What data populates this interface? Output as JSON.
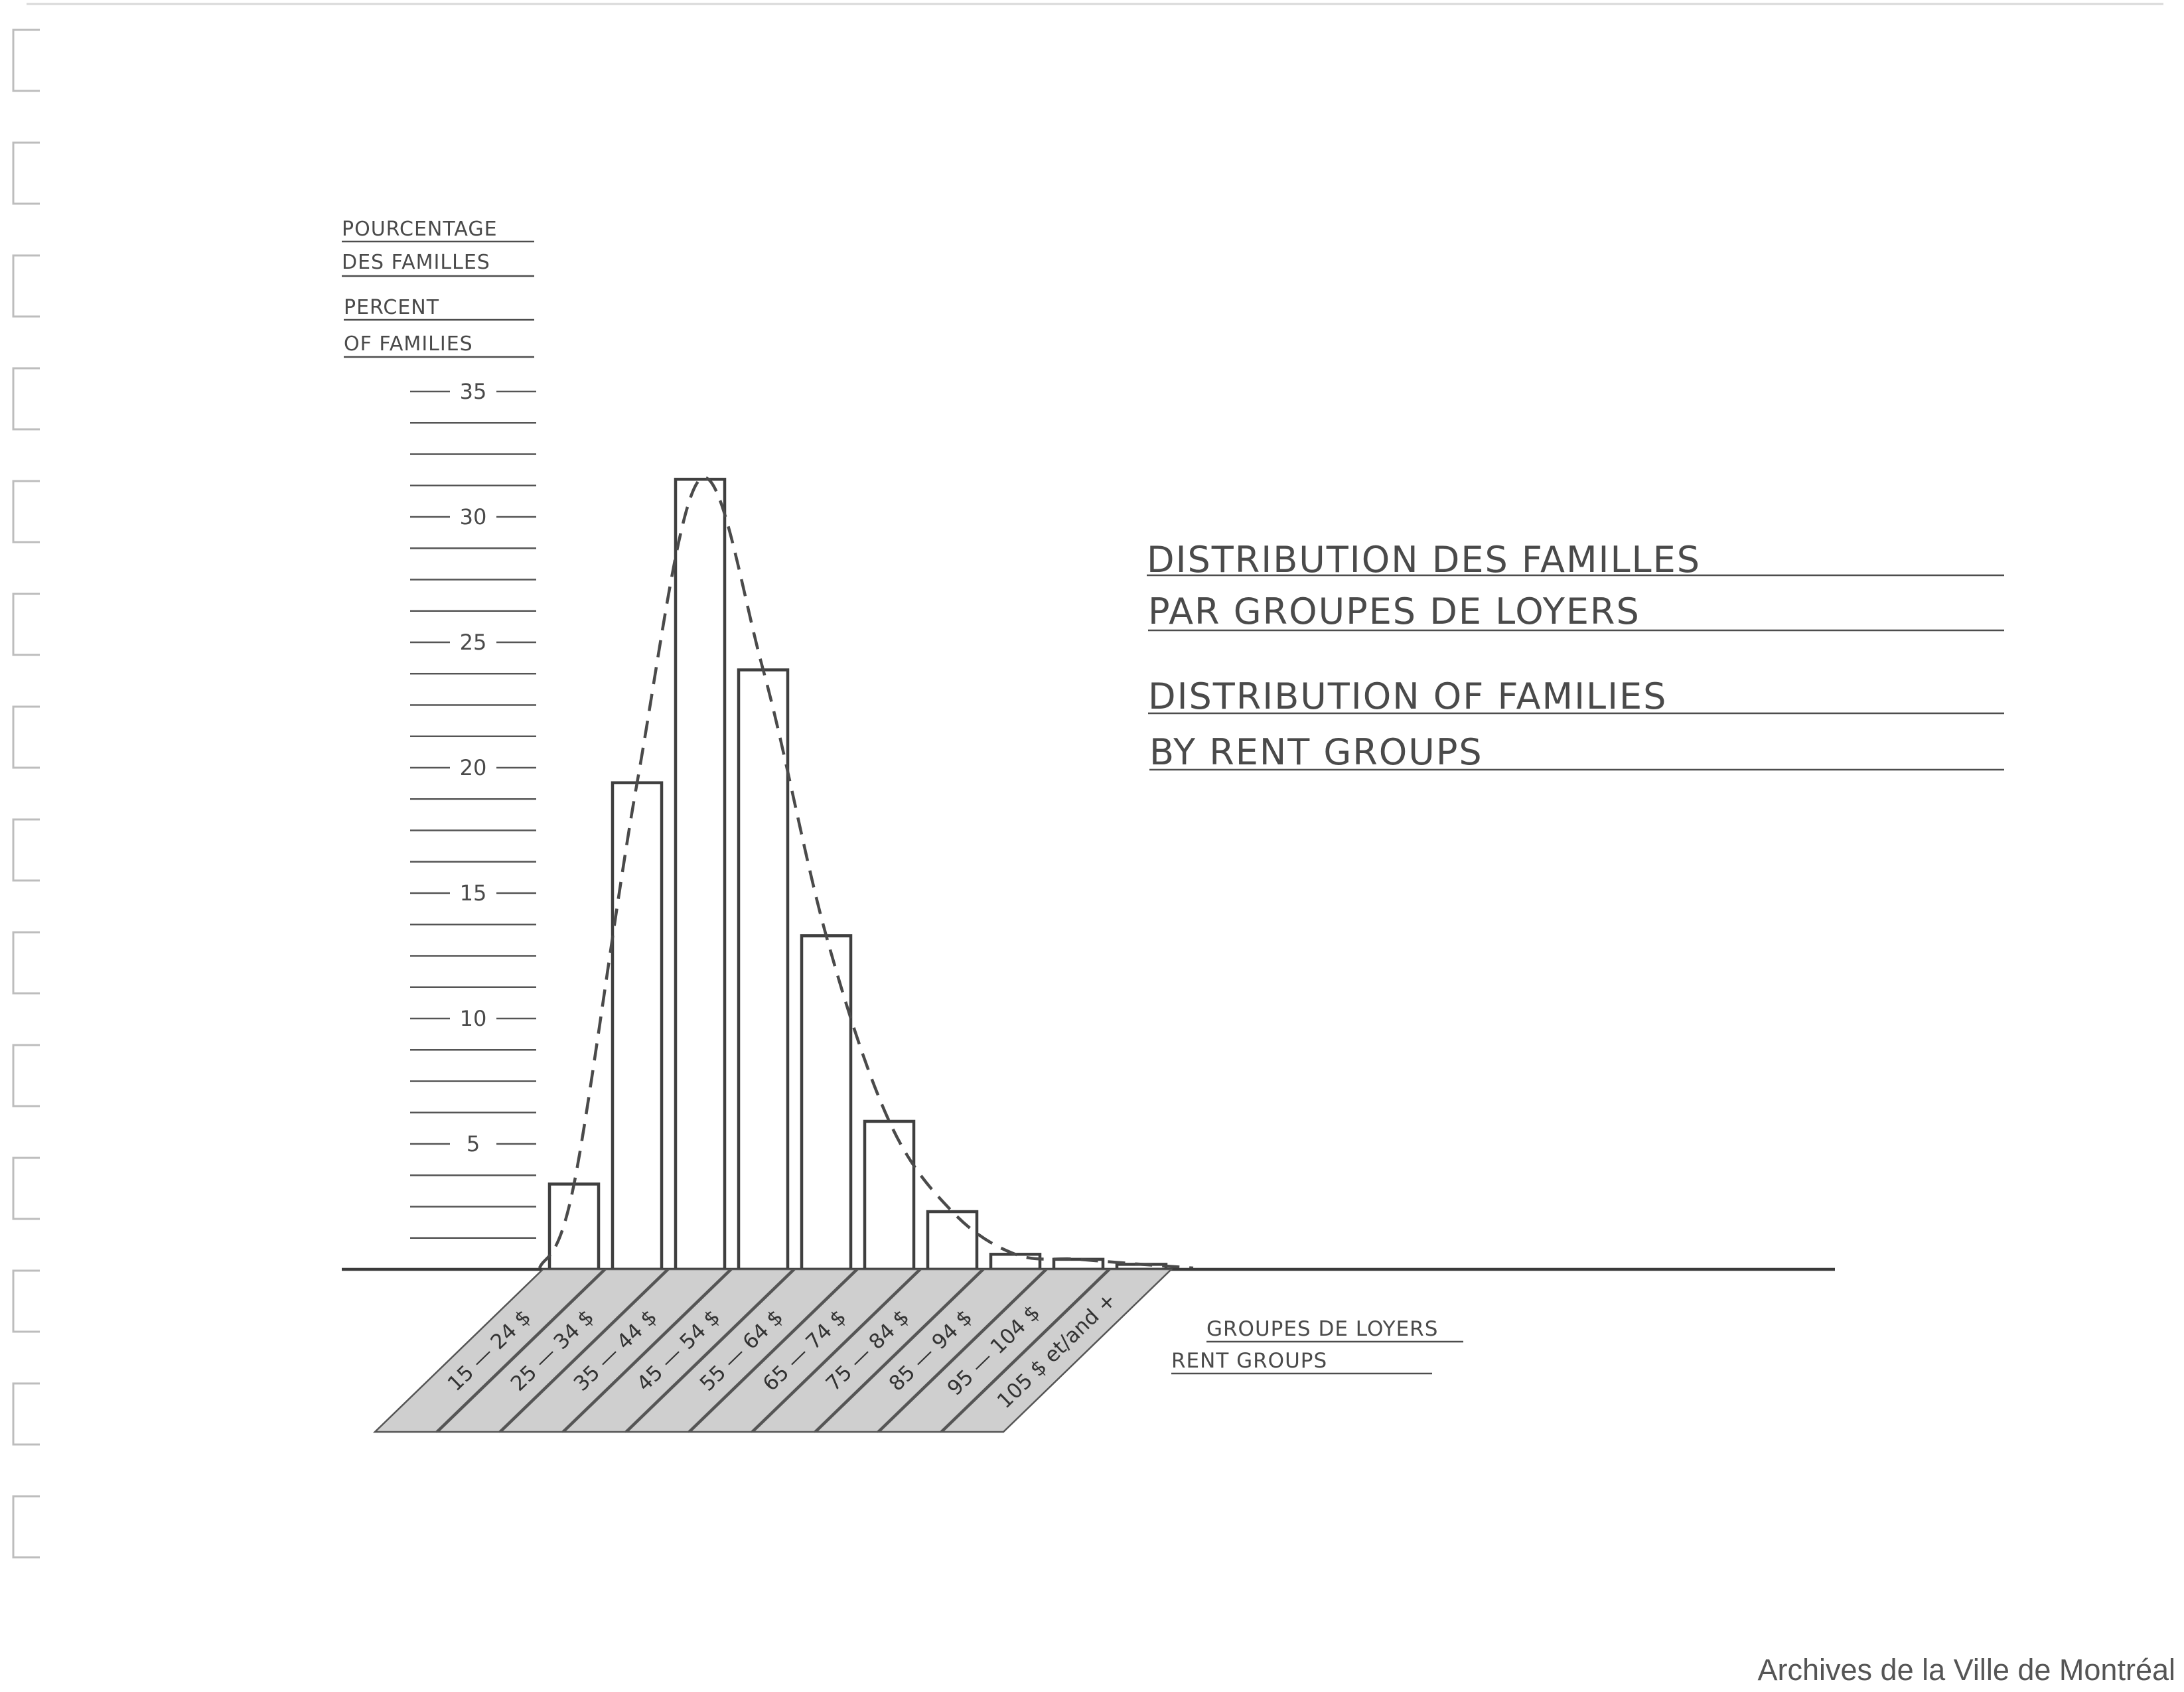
{
  "chart_data": {
    "type": "bar",
    "title_lines": [
      "DISTRIBUTION DES FAMILLES",
      "PAR GROUPES DE LOYERS",
      "DISTRIBUTION OF FAMILIES",
      "BY RENT GROUPS"
    ],
    "ylabel_lines": [
      "POURCENTAGE",
      "DES FAMILLES",
      "PERCENT",
      "OF FAMILIES"
    ],
    "xlabel_lines": [
      "GROUPES DE LOYERS",
      "RENT GROUPS"
    ],
    "yticks": [
      "35",
      "30",
      "25",
      "20",
      "15",
      "10",
      "5"
    ],
    "ylim": [
      0,
      35
    ],
    "categories": [
      "15 — 24 $",
      "25 — 34 $",
      "35 — 44 $",
      "45 — 54 $",
      "55 — 64 $",
      "65 — 74 $",
      "75 — 84 $",
      "85 — 94 $",
      "95 — 104 $",
      "105 $ et/and +"
    ],
    "values": [
      3.4,
      19.4,
      31.5,
      23.9,
      13.3,
      5.9,
      2.3,
      0.6,
      0.4,
      0.2
    ],
    "trend_curve": "dashed smooth curve",
    "grid": false,
    "legend": "none"
  },
  "credit": "Archives de la Ville de Montréal"
}
